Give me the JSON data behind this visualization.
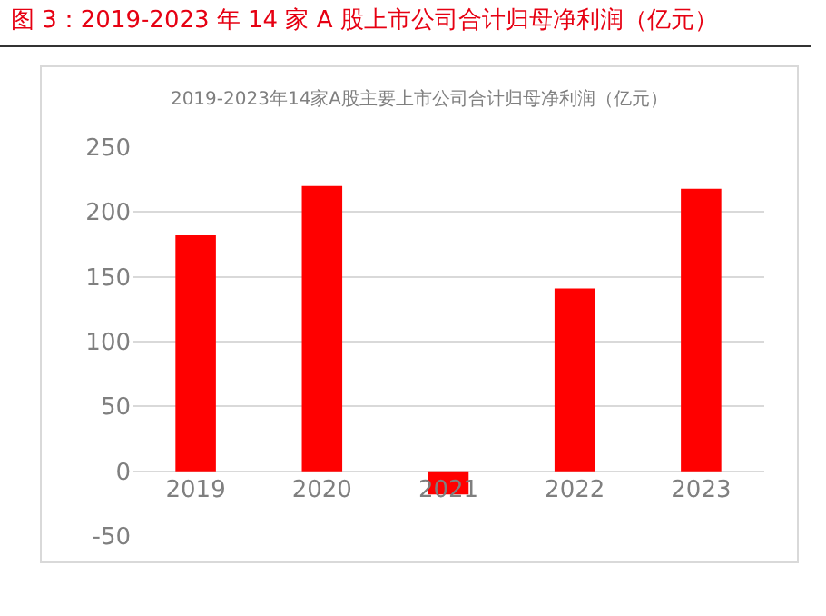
{
  "chart_data": {
    "type": "bar",
    "title": "图 3：2019-2023 年 14 家 A 股上市公司合计归母净利润（亿元）",
    "subtitle": "2019-2023年14家A股主要上市公司合计归母净利润（亿元）",
    "categories": [
      "2019",
      "2020",
      "2021",
      "2022",
      "2023"
    ],
    "values": [
      182,
      220,
      -18,
      141,
      218
    ],
    "color": "#ff0000",
    "ylim": [
      -50,
      250
    ],
    "yticks": [
      -50,
      0,
      50,
      100,
      150,
      200,
      250
    ],
    "grid": "y"
  }
}
